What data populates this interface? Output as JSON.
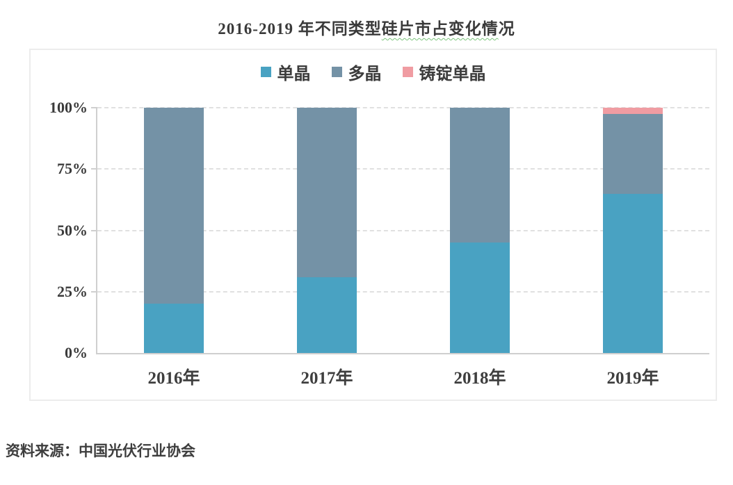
{
  "title": {
    "part1": "2016-2019 年不同类型",
    "part2_underlined": "硅片市占变化情",
    "part3": "况"
  },
  "source_note": "资料来源：中国光伏行业协会",
  "chart_data": {
    "type": "bar",
    "subtype": "stacked-percentage",
    "title": "2016-2019 年不同类型硅片市占变化情况",
    "categories": [
      "2016年",
      "2017年",
      "2018年",
      "2019年"
    ],
    "series": [
      {
        "name": "单晶",
        "color": "#49A2C2",
        "values": [
          20,
          31,
          45,
          65
        ]
      },
      {
        "name": "多晶",
        "color": "#7492A6",
        "values": [
          80,
          69,
          55,
          32.5
        ]
      },
      {
        "name": "铸锭单晶",
        "color": "#F09CA2",
        "values": [
          0,
          0,
          0,
          2.5
        ]
      }
    ],
    "y_ticks": [
      {
        "label": "0%",
        "value": 0
      },
      {
        "label": "25%",
        "value": 25
      },
      {
        "label": "50%",
        "value": 50
      },
      {
        "label": "75%",
        "value": 75
      },
      {
        "label": "100%",
        "value": 100
      }
    ],
    "ylim": [
      0,
      100
    ],
    "unit": "%",
    "legend_position": "top-center",
    "grid": "horizontal-dashed",
    "source": "中国光伏行业协会"
  }
}
